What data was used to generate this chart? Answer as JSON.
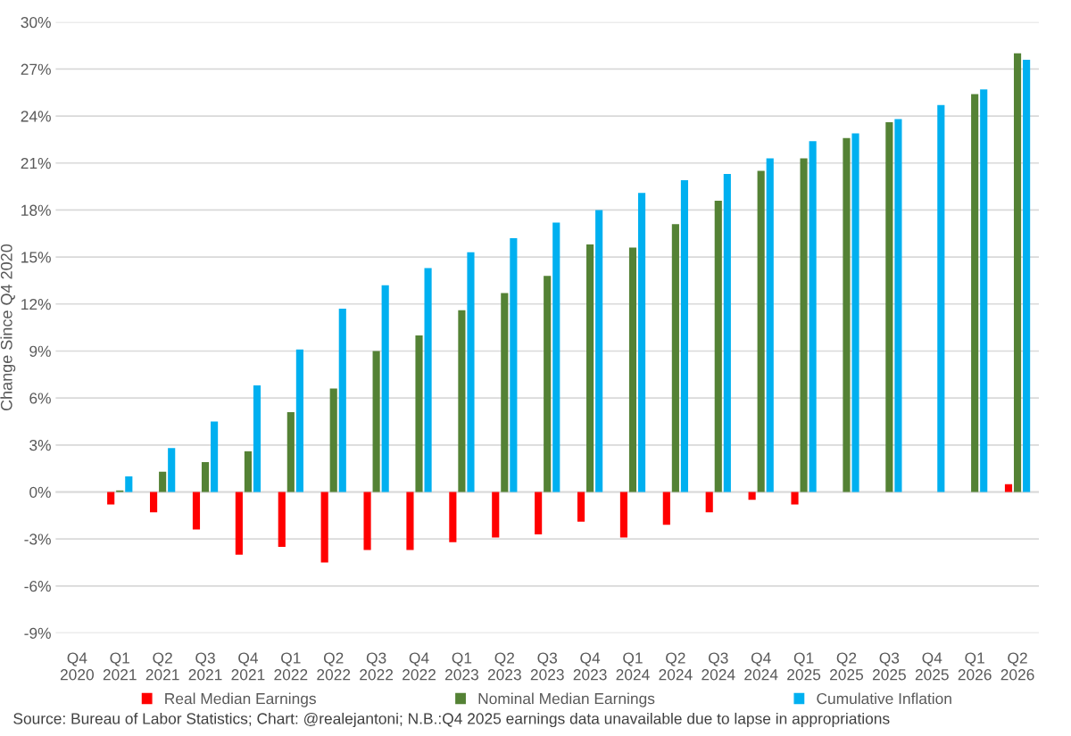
{
  "chart_data": {
    "type": "bar",
    "ylabel": "Change Since Q4 2020",
    "categories": [
      "Q4\n2020",
      "Q1\n2021",
      "Q2\n2021",
      "Q3\n2021",
      "Q4\n2021",
      "Q1\n2022",
      "Q2\n2022",
      "Q3\n2022",
      "Q4\n2022",
      "Q1\n2023",
      "Q2\n2023",
      "Q3\n2023",
      "Q4\n2023",
      "Q1\n2024",
      "Q2\n2024",
      "Q3\n2024",
      "Q4\n2024",
      "Q1\n2025",
      "Q2\n2025",
      "Q3\n2025",
      "Q4\n2025",
      "Q1\n2026",
      "Q2\n2026"
    ],
    "series": [
      {
        "name": "Real Median Earnings",
        "color": "#ff0000",
        "values": [
          null,
          -0.8,
          -1.3,
          -2.4,
          -4.0,
          -3.5,
          -4.5,
          -3.7,
          -3.7,
          -3.2,
          -2.9,
          -2.7,
          -1.9,
          -2.9,
          -2.1,
          -1.3,
          -0.5,
          -0.8,
          null,
          null,
          null,
          null,
          0.5
        ]
      },
      {
        "name": "Nominal Median Earnings",
        "color": "#548235",
        "values": [
          null,
          0.1,
          1.3,
          1.9,
          2.6,
          5.1,
          6.6,
          9.0,
          10.0,
          11.6,
          12.7,
          13.8,
          15.8,
          15.6,
          17.1,
          18.6,
          20.5,
          21.3,
          22.6,
          23.6,
          null,
          25.4,
          28.0
        ]
      },
      {
        "name": "Cumulative Inflation",
        "color": "#00b0f0",
        "values": [
          null,
          1.0,
          2.8,
          4.5,
          6.8,
          9.1,
          11.7,
          13.2,
          14.3,
          15.3,
          16.2,
          17.2,
          18.0,
          19.1,
          19.9,
          20.3,
          21.3,
          22.4,
          22.9,
          23.8,
          24.7,
          25.7,
          27.6
        ]
      }
    ],
    "ylim": [
      -9,
      30
    ],
    "yticks": [
      {
        "value": -9,
        "label": "-9%"
      },
      {
        "value": -6,
        "label": "-6%"
      },
      {
        "value": -3,
        "label": "-3%"
      },
      {
        "value": 0,
        "label": "0%"
      },
      {
        "value": 3,
        "label": "3%"
      },
      {
        "value": 6,
        "label": "6%"
      },
      {
        "value": 9,
        "label": "9%"
      },
      {
        "value": 12,
        "label": "12%"
      },
      {
        "value": 15,
        "label": "15%"
      },
      {
        "value": 18,
        "label": "18%"
      },
      {
        "value": 21,
        "label": "21%"
      },
      {
        "value": 24,
        "label": "24%"
      },
      {
        "value": 27,
        "label": "27%"
      },
      {
        "value": 30,
        "label": "30%"
      }
    ],
    "grid": "y",
    "legend": "bottom",
    "annotations": [
      "Source: Bureau of Labor Statistics; Chart: @realejantoni; N.B.:Q4 2025 earnings data unavailable due to lapse in appropriations"
    ]
  }
}
